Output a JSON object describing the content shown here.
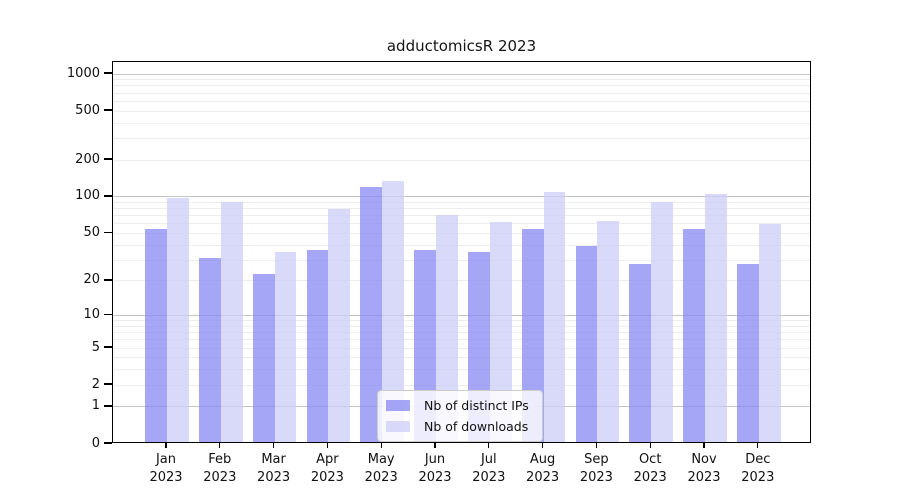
{
  "figure": {
    "title": "adductomicsR 2023"
  },
  "chart_data": {
    "type": "bar",
    "title": "adductomicsR 2023",
    "scale": "log10(value+1)",
    "grid": true,
    "legend_position": "lower center",
    "categories": [
      "Jan",
      "Feb",
      "Mar",
      "Apr",
      "May",
      "Jun",
      "Jul",
      "Aug",
      "Sep",
      "Oct",
      "Nov",
      "Dec"
    ],
    "year_label": "2023",
    "series": [
      {
        "name": "Nb of distinct IPs",
        "color": "#8788f2",
        "alpha": 0.75,
        "values": [
          52,
          30,
          22,
          35,
          116,
          35,
          34,
          52,
          38,
          27,
          52,
          27
        ]
      },
      {
        "name": "Nb of downloads",
        "color": "#cccdf8",
        "alpha": 0.75,
        "values": [
          95,
          87,
          34,
          77,
          131,
          68,
          60,
          106,
          61,
          87,
          101,
          58
        ]
      }
    ],
    "y_ticks": [
      0,
      1,
      2,
      5,
      10,
      20,
      50,
      100,
      200,
      500,
      1000
    ],
    "ylim": [
      0,
      1250
    ]
  },
  "colors": {
    "major_grid": "#c4c4c4",
    "minor_grid": "#ededed",
    "axis": "#000000",
    "text": "#111111"
  }
}
